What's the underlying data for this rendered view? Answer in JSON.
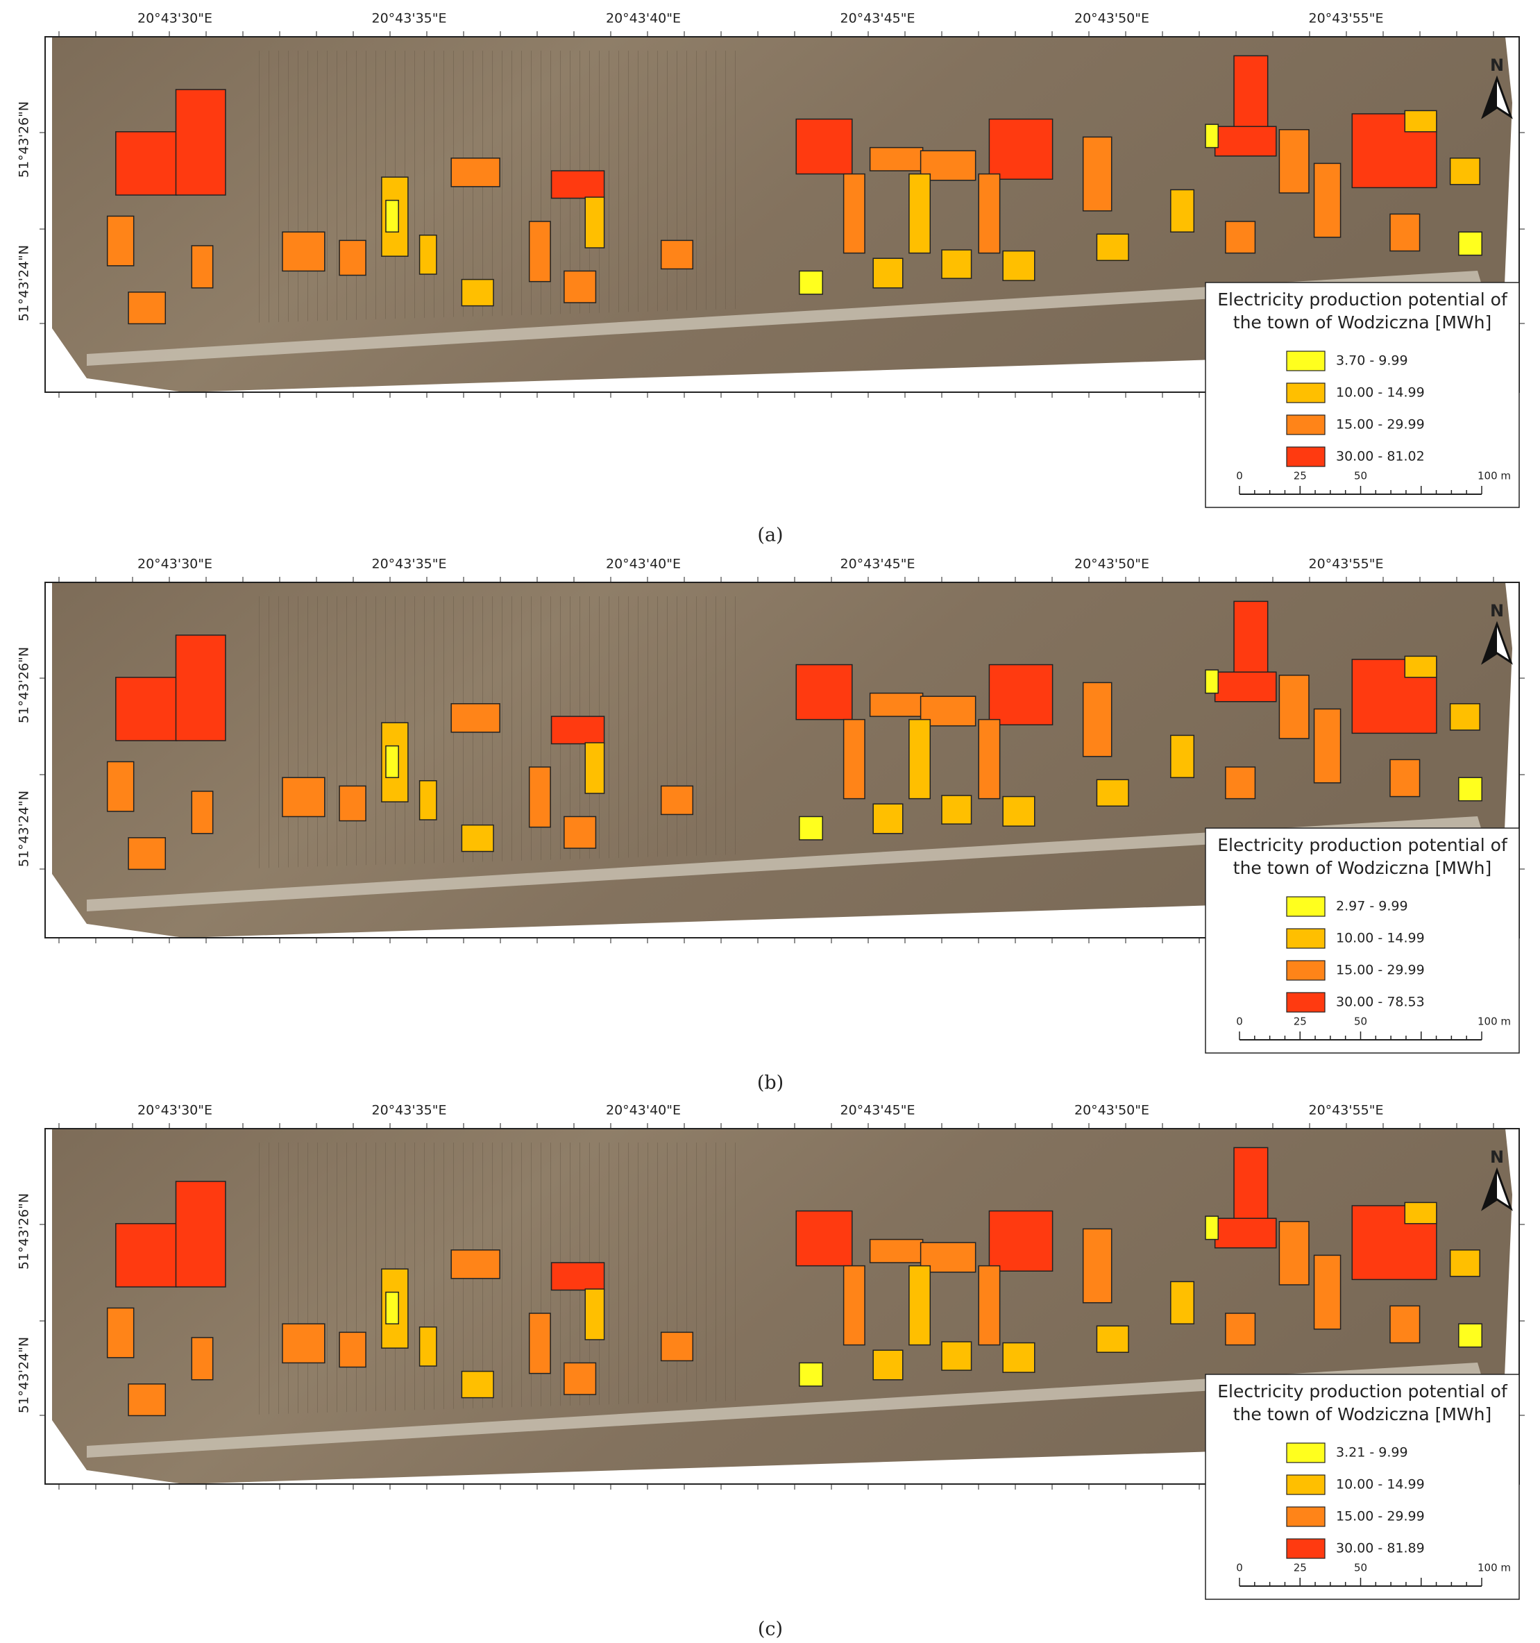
{
  "panels": [
    {
      "caption": "(a)",
      "x_labels": [
        "20°43'30\"E",
        "20°43'35\"E",
        "20°43'40\"E",
        "20°43'45\"E",
        "20°43'50\"E",
        "20°43'55\"E"
      ],
      "y_labels": [
        "51°43'26\"N",
        "51°43'24\"N"
      ],
      "north_label": "N",
      "legend_title": [
        "Electricity production potential of",
        "the town of Wodziczna [MWh]"
      ],
      "classes": [
        {
          "label": "3.70 - 9.99",
          "color": "#ffff1e"
        },
        {
          "label": "10.00 - 14.99",
          "color": "#ffbf00"
        },
        {
          "label": "15.00 - 29.99",
          "color": "#ff8418"
        },
        {
          "label": "30.00 - 81.02",
          "color": "#ff3a10"
        }
      ],
      "scale_labels": [
        "0",
        "25",
        "50",
        "100 m"
      ]
    },
    {
      "caption": "(b)",
      "x_labels": [
        "20°43'30\"E",
        "20°43'35\"E",
        "20°43'40\"E",
        "20°43'45\"E",
        "20°43'50\"E",
        "20°43'55\"E"
      ],
      "y_labels": [
        "51°43'26\"N",
        "51°43'24\"N"
      ],
      "north_label": "N",
      "legend_title": [
        "Electricity production potential of",
        "the town of Wodziczna [MWh]"
      ],
      "classes": [
        {
          "label": "2.97 - 9.99",
          "color": "#ffff1e"
        },
        {
          "label": "10.00 - 14.99",
          "color": "#ffbf00"
        },
        {
          "label": "15.00 - 29.99",
          "color": "#ff8418"
        },
        {
          "label": "30.00 - 78.53",
          "color": "#ff3a10"
        }
      ],
      "scale_labels": [
        "0",
        "25",
        "50",
        "100 m"
      ]
    },
    {
      "caption": "(c)",
      "x_labels": [
        "20°43'30\"E",
        "20°43'35\"E",
        "20°43'40\"E",
        "20°43'45\"E",
        "20°43'50\"E",
        "20°43'55\"E"
      ],
      "y_labels": [
        "51°43'26\"N",
        "51°43'24\"N"
      ],
      "north_label": "N",
      "legend_title": [
        "Electricity production potential of",
        "the town of Wodziczna [MWh]"
      ],
      "classes": [
        {
          "label": "3.21 - 9.99",
          "color": "#ffff1e"
        },
        {
          "label": "10.00 - 14.99",
          "color": "#ffbf00"
        },
        {
          "label": "15.00 - 29.99",
          "color": "#ff8418"
        },
        {
          "label": "30.00 - 81.89",
          "color": "#ff3a10"
        }
      ],
      "scale_labels": [
        "0",
        "25",
        "50",
        "100 m"
      ]
    }
  ]
}
